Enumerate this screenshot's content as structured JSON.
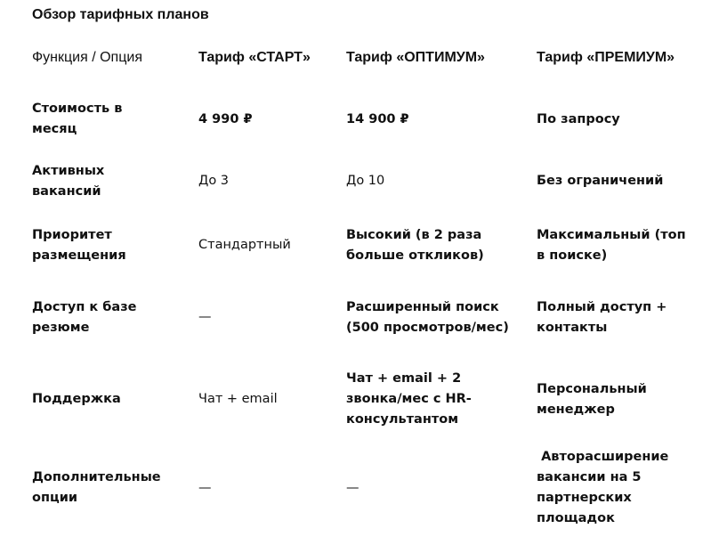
{
  "title": "Обзор тарифных планов",
  "headers": [
    "Функция / Опция",
    "Тариф «СТАРТ»",
    "Тариф «ОПТИМУМ»",
    "Тариф «ПРЕМИУМ»"
  ],
  "rows": [
    {
      "feature": "Стоимость в месяц",
      "start": "4 990 ₽",
      "optimum": "14 900 ₽",
      "premium": "По запросу"
    },
    {
      "feature": "Активных вакансий",
      "start": "До 3",
      "optimum": "До 10",
      "premium": "Без ограничений"
    },
    {
      "feature": "Приоритет размещения",
      "start": "Стандартный",
      "optimum": "Высокий (в 2 раза больше откликов)",
      "premium": "Максимальный (топ в поиске)"
    },
    {
      "feature": "Доступ к базе резюме",
      "start": "—",
      "optimum": "Расширенный поиск (500 просмотров/мес)",
      "premium": "Полный доступ + контакты"
    },
    {
      "feature": "Поддержка",
      "start": "Чат + email",
      "optimum": "Чат + email + 2 звонка/мес с HR-консультантом",
      "premium": "Персональный менеджер"
    },
    {
      "feature": "Дополнительные опции",
      "start": "—",
      "optimum": "—",
      "premium": " Авторасширение вакансии на 5 партнерских площадок"
    }
  ]
}
